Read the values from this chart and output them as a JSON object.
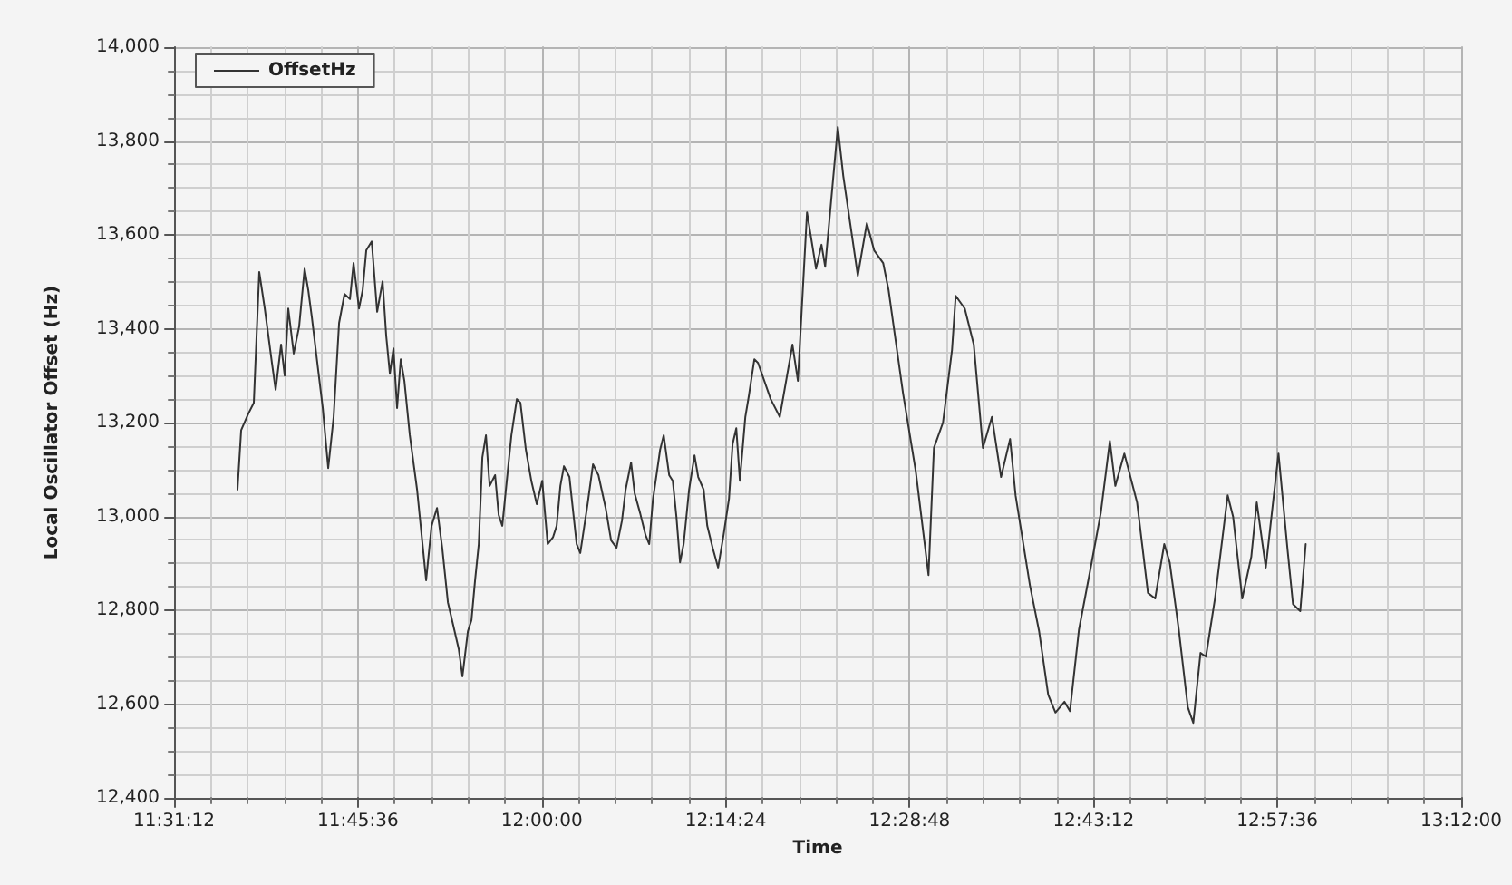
{
  "chart_data": {
    "type": "line",
    "xlabel": "Time",
    "ylabel": "Local Oscillator Offset (Hz)",
    "xlim": [
      11.52,
      13.2
    ],
    "xticks": [
      {
        "value": 11.52,
        "label": "11:31:12"
      },
      {
        "value": 11.76,
        "label": "11:45:36"
      },
      {
        "value": 12.0,
        "label": "12:00:00"
      },
      {
        "value": 12.24,
        "label": "12:14:24"
      },
      {
        "value": 12.48,
        "label": "12:28:48"
      },
      {
        "value": 12.72,
        "label": "12:43:12"
      },
      {
        "value": 12.96,
        "label": "12:57:36"
      },
      {
        "value": 13.2,
        "label": "13:12:00"
      }
    ],
    "ylim": [
      12400,
      14000
    ],
    "yticks": [
      {
        "value": 12400,
        "label": "12,400"
      },
      {
        "value": 12600,
        "label": "12,600"
      },
      {
        "value": 12800,
        "label": "12,800"
      },
      {
        "value": 13000,
        "label": "13,000"
      },
      {
        "value": 13200,
        "label": "13,200"
      },
      {
        "value": 13400,
        "label": "13,400"
      },
      {
        "value": 13600,
        "label": "13,600"
      },
      {
        "value": 13800,
        "label": "13,800"
      },
      {
        "value": 14000,
        "label": "14,000"
      }
    ],
    "grid": true,
    "legend": "top left",
    "marker": "none",
    "line_style": "solid",
    "series": [
      {
        "name": "OffsetHz",
        "color": "#333333",
        "x": [
          11.6028,
          11.6076,
          11.617,
          11.6241,
          11.6312,
          11.6384,
          11.6478,
          11.6526,
          11.6597,
          11.6644,
          11.6691,
          11.6762,
          11.6833,
          11.6904,
          11.6952,
          11.6999,
          11.707,
          11.7141,
          11.7212,
          11.7283,
          11.7354,
          11.7425,
          11.7496,
          11.7543,
          11.7614,
          11.7662,
          11.7709,
          11.778,
          11.7851,
          11.7922,
          11.7969,
          11.8017,
          11.8064,
          11.8111,
          11.8159,
          11.8206,
          11.8277,
          11.8372,
          11.8443,
          11.849,
          11.8561,
          11.8632,
          11.8703,
          11.8774,
          11.8845,
          11.8916,
          11.8964,
          11.9035,
          11.9082,
          11.9129,
          11.9177,
          11.9224,
          11.9271,
          11.9319,
          11.939,
          11.9437,
          11.9484,
          11.9555,
          11.9603,
          11.9674,
          11.9721,
          11.9792,
          11.9863,
          11.9934,
          12.0005,
          12.0076,
          12.0147,
          12.0194,
          12.0242,
          12.0289,
          12.036,
          12.0455,
          12.0502,
          12.0597,
          12.0668,
          12.0739,
          12.0833,
          12.0904,
          12.0975,
          12.1046,
          12.1094,
          12.1165,
          12.1212,
          12.1283,
          12.1354,
          12.1402,
          12.1449,
          12.1544,
          12.1591,
          12.1662,
          12.1709,
          12.1757,
          12.1804,
          12.1851,
          12.1922,
          12.1993,
          12.2041,
          12.2112,
          12.2159,
          12.223,
          12.2301,
          12.2372,
          12.2443,
          12.249,
          12.2538,
          12.2585,
          12.2656,
          12.2703,
          12.2774,
          12.2822,
          12.2987,
          12.3106,
          12.3271,
          12.3342,
          12.3461,
          12.3579,
          12.365,
          12.3698,
          12.3863,
          12.3934,
          12.4124,
          12.4242,
          12.4337,
          12.4455,
          12.4526,
          12.4715,
          12.4881,
          12.5047,
          12.5118,
          12.5236,
          12.5354,
          12.5402,
          12.552,
          12.5638,
          12.5757,
          12.5875,
          12.5994,
          12.6112,
          12.6183,
          12.6372,
          12.6491,
          12.6609,
          12.6704,
          12.6822,
          12.6893,
          12.7011,
          12.7177,
          12.7295,
          12.7414,
          12.7485,
          12.7603,
          12.7769,
          12.7911,
          12.8005,
          12.8124,
          12.8195,
          12.8313,
          12.8432,
          12.8503,
          12.8597,
          12.8668,
          12.8786,
          12.8952,
          12.9023,
          12.9142,
          12.926,
          12.9331,
          12.9449,
          12.9544,
          12.9615,
          12.9733,
          12.9804,
          12.9899,
          12.997
        ],
        "values": [
          13057,
          13184,
          13219,
          13242,
          13521,
          13443,
          13327,
          13270,
          13366,
          13300,
          13443,
          13347,
          13405,
          13528,
          13482,
          13424,
          13327,
          13231,
          13103,
          13212,
          13412,
          13474,
          13463,
          13540,
          13443,
          13482,
          13567,
          13586,
          13436,
          13501,
          13385,
          13304,
          13358,
          13231,
          13335,
          13289,
          13173,
          13057,
          12941,
          12864,
          12980,
          13018,
          12929,
          12817,
          12767,
          12717,
          12659,
          12755,
          12779,
          12864,
          12941,
          13126,
          13173,
          13065,
          13088,
          13003,
          12980,
          13096,
          13173,
          13250,
          13242,
          13142,
          13076,
          13026,
          13076,
          12941,
          12956,
          12980,
          13065,
          13107,
          13084,
          12941,
          12922,
          13026,
          13111,
          13088,
          13018,
          12949,
          12933,
          12991,
          13057,
          13115,
          13049,
          13007,
          12960,
          12941,
          13034,
          13142,
          13173,
          13088,
          13076,
          12999,
          12902,
          12941,
          13057,
          13130,
          13084,
          13057,
          12980,
          12933,
          12891,
          12960,
          13038,
          13154,
          13188,
          13076,
          13212,
          13258,
          13335,
          13327,
          13250,
          13212,
          13366,
          13289,
          13648,
          13528,
          13579,
          13532,
          13830,
          13726,
          13513,
          13625,
          13567,
          13540,
          13482,
          13262,
          13096,
          12875,
          13146,
          13200,
          13355,
          13470,
          13443,
          13366,
          13146,
          13212,
          13084,
          13165,
          13045,
          12852,
          12755,
          12620,
          12582,
          12605,
          12585,
          12759,
          12902,
          13007,
          13161,
          13065,
          13134,
          13030,
          12837,
          12825,
          12941,
          12902,
          12759,
          12593,
          12560,
          12709,
          12701,
          12825,
          13045,
          12999,
          12825,
          12914,
          13030,
          12891,
          13030,
          13134,
          12929,
          12813,
          12798,
          12941
        ]
      }
    ]
  }
}
